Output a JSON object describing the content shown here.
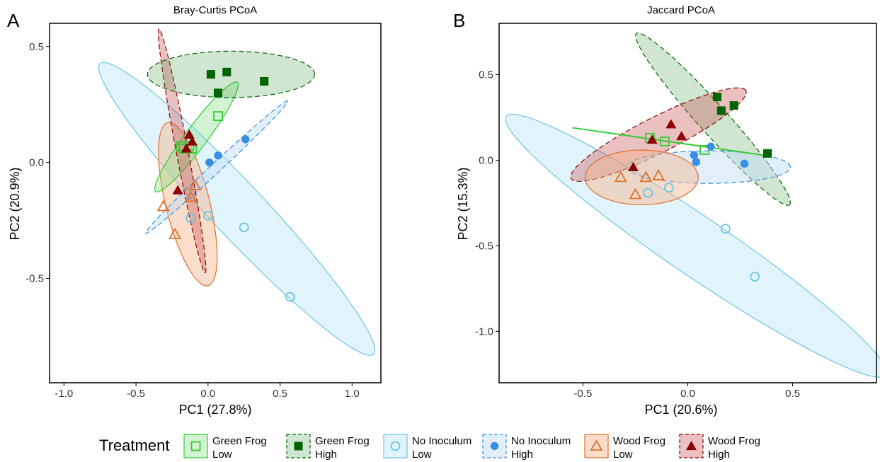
{
  "colors": {
    "gfl": "#33cc33",
    "gfh": "#006400",
    "nil": "#6cc4e6",
    "nih": "#3b8ee6",
    "wfl": "#e0702a",
    "wfh": "#8b0000"
  },
  "legend": {
    "title": "Treatment",
    "items": [
      {
        "key": "gfl",
        "line1": "Green Frog",
        "line2": "Low",
        "shape": "open-square"
      },
      {
        "key": "gfh",
        "line1": "Green Frog",
        "line2": "High",
        "shape": "filled-square"
      },
      {
        "key": "nil",
        "line1": "No Inoculum",
        "line2": "Low",
        "shape": "open-circle"
      },
      {
        "key": "nih",
        "line1": "No Inoculum",
        "line2": "High",
        "shape": "filled-circle"
      },
      {
        "key": "wfl",
        "line1": "Wood Frog",
        "line2": "Low",
        "shape": "open-triangle"
      },
      {
        "key": "wfh",
        "line1": "Wood Frog",
        "line2": "High",
        "shape": "filled-triangle"
      }
    ]
  },
  "chart_data": [
    {
      "type": "scatter",
      "panel_label": "A",
      "title": "Bray-Curtis PCoA",
      "xlabel": "PC1 (27.8%)",
      "ylabel": "PC2 (20.9%)",
      "xlim": [
        -1.1,
        1.2
      ],
      "ylim": [
        -0.95,
        0.6
      ],
      "xticks": [
        -1.0,
        -0.5,
        0.0,
        0.5,
        1.0
      ],
      "xtick_labels": [
        "-1.0",
        "-0.5",
        "0.0",
        "0.5",
        "1.0"
      ],
      "yticks": [
        -0.5,
        0.0,
        0.5
      ],
      "ytick_labels": [
        "-0.5",
        "0.0",
        "0.5"
      ],
      "grid": false,
      "series": [
        {
          "key": "gfl",
          "points": [
            [
              0.07,
              0.2
            ],
            [
              -0.13,
              0.07
            ],
            [
              -0.17,
              0.06
            ],
            [
              -0.11,
              0.06
            ],
            [
              -0.19,
              0.07
            ]
          ]
        },
        {
          "key": "gfh",
          "points": [
            [
              0.02,
              0.38
            ],
            [
              0.13,
              0.39
            ],
            [
              0.39,
              0.35
            ],
            [
              0.07,
              0.3
            ]
          ]
        },
        {
          "key": "nil",
          "points": [
            [
              -0.12,
              -0.24
            ],
            [
              0.0,
              -0.23
            ],
            [
              0.25,
              -0.28
            ],
            [
              0.57,
              -0.58
            ]
          ]
        },
        {
          "key": "nih",
          "points": [
            [
              0.26,
              0.1
            ],
            [
              0.07,
              0.03
            ],
            [
              0.01,
              0.0
            ]
          ]
        },
        {
          "key": "wfl",
          "points": [
            [
              -0.09,
              -0.1
            ],
            [
              -0.12,
              -0.15
            ],
            [
              -0.31,
              -0.19
            ],
            [
              -0.23,
              -0.31
            ]
          ]
        },
        {
          "key": "wfh",
          "points": [
            [
              -0.13,
              0.12
            ],
            [
              -0.11,
              0.09
            ],
            [
              -0.15,
              0.06
            ],
            [
              -0.21,
              -0.12
            ]
          ]
        }
      ],
      "ellipses": [
        {
          "key": "nil",
          "cx": 0.2,
          "cy": -0.2,
          "rx": 1.14,
          "ry": 0.14,
          "angle": -33
        },
        {
          "key": "wfl",
          "cx": -0.14,
          "cy": -0.18,
          "rx": 0.38,
          "ry": 0.145,
          "angle": -66
        },
        {
          "key": "gfl",
          "cx": -0.08,
          "cy": 0.11,
          "rx": 0.37,
          "ry": 0.06,
          "angle": 39
        },
        {
          "key": "nih",
          "cx": 0.06,
          "cy": -0.02,
          "rx": 0.57,
          "ry": 0.025,
          "angle": 30
        },
        {
          "key": "wfh",
          "cx": -0.18,
          "cy": 0.05,
          "rx": 0.55,
          "ry": 0.04,
          "angle": -73
        },
        {
          "key": "gfh",
          "cx": 0.16,
          "cy": 0.38,
          "rx": 0.58,
          "ry": 0.1,
          "angle": 0
        }
      ]
    },
    {
      "type": "scatter",
      "panel_label": "B",
      "title": "Jaccard PCoA",
      "xlabel": "PC1 (20.6%)",
      "ylabel": "PC2 (15.3%)",
      "xlim": [
        -0.9,
        0.9
      ],
      "ylim": [
        -1.3,
        0.8
      ],
      "xticks": [
        -0.5,
        0.0,
        0.5
      ],
      "xtick_labels": [
        "-0.5",
        "0.0",
        "0.5"
      ],
      "yticks": [
        -1.0,
        -0.5,
        0.0,
        0.5
      ],
      "ytick_labels": [
        "-1.0",
        "-0.5",
        "0.0",
        "0.5"
      ],
      "grid": false,
      "series": [
        {
          "key": "gfl",
          "points": [
            [
              -0.18,
              0.13
            ],
            [
              -0.11,
              0.11
            ],
            [
              0.08,
              0.06
            ]
          ]
        },
        {
          "key": "gfh",
          "points": [
            [
              0.14,
              0.37
            ],
            [
              0.22,
              0.32
            ],
            [
              0.16,
              0.29
            ],
            [
              0.38,
              0.04
            ]
          ]
        },
        {
          "key": "nil",
          "points": [
            [
              -0.19,
              -0.19
            ],
            [
              -0.09,
              -0.16
            ],
            [
              0.18,
              -0.4
            ],
            [
              0.32,
              -0.68
            ]
          ]
        },
        {
          "key": "nih",
          "points": [
            [
              0.11,
              0.08
            ],
            [
              0.03,
              0.03
            ],
            [
              0.04,
              -0.01
            ],
            [
              0.27,
              -0.02
            ]
          ]
        },
        {
          "key": "wfl",
          "points": [
            [
              -0.32,
              -0.1
            ],
            [
              -0.2,
              -0.1
            ],
            [
              -0.14,
              -0.09
            ],
            [
              -0.25,
              -0.2
            ]
          ]
        },
        {
          "key": "wfh",
          "points": [
            [
              -0.08,
              0.21
            ],
            [
              -0.03,
              0.14
            ],
            [
              -0.17,
              0.12
            ],
            [
              -0.26,
              -0.04
            ]
          ]
        }
      ],
      "fit_line": {
        "key": "gfl",
        "x": [
          -0.55,
          0.36
        ],
        "y": [
          0.19,
          0.03
        ]
      },
      "ellipses": [
        {
          "key": "nil",
          "cx": 0.04,
          "cy": -0.5,
          "rx": 1.18,
          "ry": 0.16,
          "angle": -40
        },
        {
          "key": "gfh",
          "cx": 0.12,
          "cy": 0.24,
          "rx": 0.62,
          "ry": 0.075,
          "angle": -54
        },
        {
          "key": "wfh",
          "cx": -0.14,
          "cy": 0.15,
          "rx": 0.49,
          "ry": 0.1,
          "angle": 32
        },
        {
          "key": "nih",
          "cx": 0.1,
          "cy": -0.04,
          "rx": 0.39,
          "ry": 0.095,
          "angle": 0
        },
        {
          "key": "wfl",
          "cx": -0.22,
          "cy": -0.1,
          "rx": 0.27,
          "ry": 0.16,
          "angle": 0
        }
      ]
    }
  ]
}
